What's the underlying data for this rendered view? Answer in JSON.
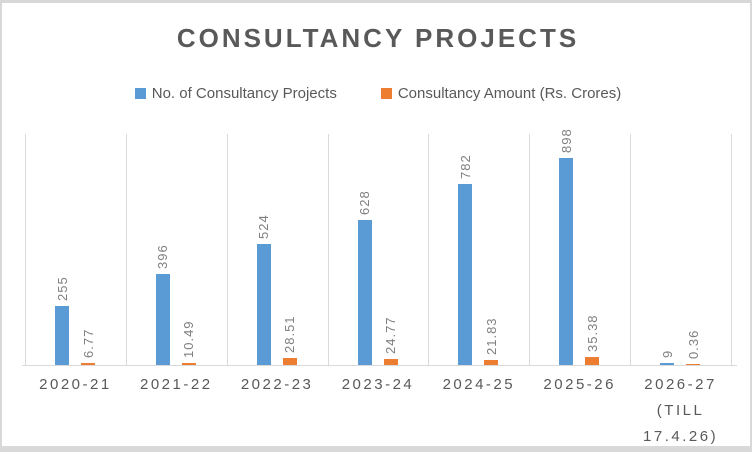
{
  "title": "CONSULTANCY PROJECTS",
  "colors": {
    "series_projects": "#5B9BD5",
    "series_amount": "#ED7D31",
    "title_text": "#595959",
    "axis_text": "#595959",
    "data_label_text": "#7F7F7F",
    "gridline": "#D9D9D9",
    "frame_border": "#D8D8D8"
  },
  "legend": {
    "position": "top",
    "items": [
      {
        "label": "No. of Consultancy Projects",
        "color": "#5B9BD5"
      },
      {
        "label": "Consultancy Amount (Rs. Crores)",
        "color": "#ED7D31"
      }
    ]
  },
  "chart_data": {
    "type": "bar",
    "title": "CONSULTANCY PROJECTS",
    "categories": [
      "2020-21",
      "2021-22",
      "2022-23",
      "2023-24",
      "2024-25",
      "2025-26",
      "2026-27 (TILL 17.4.26)"
    ],
    "category_label_lines": [
      [
        "2020-21"
      ],
      [
        "2021-22"
      ],
      [
        "2022-23"
      ],
      [
        "2023-24"
      ],
      [
        "2024-25"
      ],
      [
        "2025-26"
      ],
      [
        "2026-27",
        "(TILL",
        "17.4.26)"
      ]
    ],
    "series": [
      {
        "name": "No. of Consultancy Projects",
        "color": "#5B9BD5",
        "values": [
          255,
          396,
          524,
          628,
          782,
          898,
          9
        ]
      },
      {
        "name": "Consultancy Amount (Rs. Crores)",
        "color": "#ED7D31",
        "values": [
          6.77,
          10.49,
          28.51,
          24.77,
          21.83,
          35.38,
          0.36
        ]
      }
    ],
    "data_labels": {
      "shown": true,
      "rotation": -90,
      "position": "outside-end"
    },
    "xlabel": "",
    "ylabel": "",
    "ylim": [
      0,
      1000
    ],
    "y_axis_labels_shown": false,
    "gridlines": "vertical-at-category-boundaries",
    "legend_position": "top"
  }
}
